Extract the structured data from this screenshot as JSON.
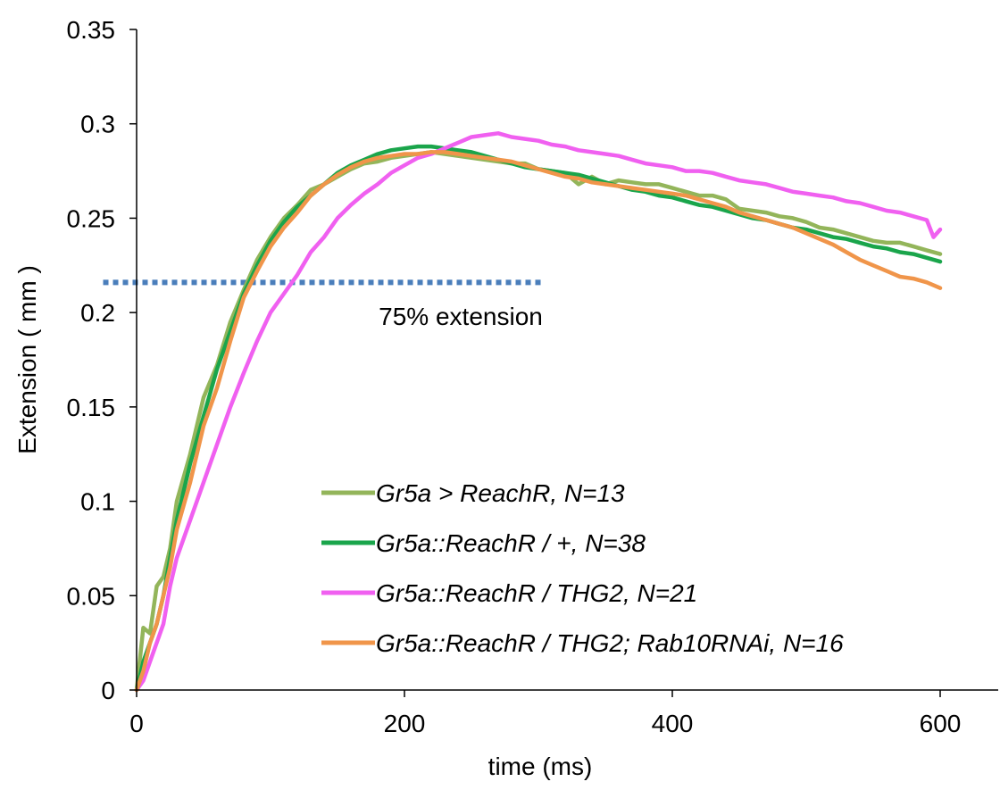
{
  "chart_data": {
    "type": "line",
    "xlabel": "time (ms)",
    "ylabel": "Extension ( mm )",
    "xlim": [
      0,
      600
    ],
    "ylim": [
      0,
      0.35
    ],
    "xticks": [
      "0",
      "200",
      "400",
      "600"
    ],
    "yticks": [
      "0",
      "0.05",
      "0.1",
      "0.15",
      "0.2",
      "0.25",
      "0.3",
      "0.35"
    ],
    "grid": false,
    "legend_position": "lower-right",
    "annotation": {
      "label": "75% extension",
      "y": 0.216,
      "x_range": [
        -25,
        303
      ],
      "color": "#4a7ebb",
      "style": "dotted"
    },
    "series": [
      {
        "name": "Gr5a > ReachR, N=13",
        "color": "#93b55a",
        "x": [
          0,
          5,
          10,
          15,
          20,
          25,
          30,
          40,
          50,
          60,
          70,
          80,
          90,
          100,
          110,
          120,
          130,
          140,
          150,
          160,
          170,
          180,
          190,
          200,
          210,
          220,
          230,
          240,
          250,
          260,
          270,
          280,
          290,
          300,
          310,
          320,
          330,
          340,
          350,
          360,
          370,
          380,
          390,
          400,
          410,
          420,
          430,
          440,
          450,
          460,
          470,
          480,
          490,
          500,
          510,
          520,
          530,
          540,
          550,
          560,
          570,
          580,
          590,
          600
        ],
        "y": [
          0.0,
          0.033,
          0.03,
          0.055,
          0.06,
          0.075,
          0.1,
          0.125,
          0.155,
          0.172,
          0.195,
          0.212,
          0.228,
          0.24,
          0.25,
          0.257,
          0.265,
          0.268,
          0.272,
          0.276,
          0.279,
          0.28,
          0.282,
          0.283,
          0.284,
          0.285,
          0.284,
          0.283,
          0.282,
          0.281,
          0.28,
          0.279,
          0.279,
          0.276,
          0.275,
          0.274,
          0.268,
          0.272,
          0.268,
          0.27,
          0.269,
          0.268,
          0.268,
          0.266,
          0.264,
          0.262,
          0.262,
          0.26,
          0.255,
          0.254,
          0.253,
          0.251,
          0.25,
          0.248,
          0.245,
          0.244,
          0.242,
          0.24,
          0.238,
          0.237,
          0.237,
          0.235,
          0.233,
          0.231
        ]
      },
      {
        "name": "Gr5a::ReachR / +, N=38",
        "color": "#1aa54b",
        "x": [
          0,
          5,
          10,
          15,
          20,
          25,
          30,
          40,
          50,
          60,
          70,
          80,
          90,
          100,
          110,
          120,
          130,
          140,
          150,
          160,
          170,
          180,
          190,
          200,
          210,
          220,
          230,
          240,
          250,
          260,
          270,
          280,
          290,
          300,
          310,
          320,
          330,
          340,
          350,
          360,
          370,
          380,
          390,
          400,
          410,
          420,
          430,
          440,
          450,
          460,
          470,
          480,
          490,
          500,
          510,
          520,
          530,
          540,
          550,
          560,
          570,
          580,
          590,
          600
        ],
        "y": [
          0.0,
          0.015,
          0.025,
          0.035,
          0.05,
          0.07,
          0.09,
          0.12,
          0.145,
          0.17,
          0.19,
          0.21,
          0.225,
          0.238,
          0.248,
          0.256,
          0.262,
          0.268,
          0.274,
          0.278,
          0.281,
          0.284,
          0.286,
          0.287,
          0.288,
          0.288,
          0.287,
          0.286,
          0.285,
          0.283,
          0.281,
          0.279,
          0.277,
          0.276,
          0.275,
          0.274,
          0.273,
          0.271,
          0.269,
          0.267,
          0.265,
          0.264,
          0.262,
          0.261,
          0.259,
          0.257,
          0.256,
          0.254,
          0.252,
          0.25,
          0.249,
          0.247,
          0.245,
          0.244,
          0.242,
          0.24,
          0.239,
          0.237,
          0.235,
          0.234,
          0.232,
          0.231,
          0.229,
          0.227
        ]
      },
      {
        "name": "Gr5a::ReachR / THG2, N=21",
        "color": "#f060f0",
        "x": [
          0,
          5,
          10,
          15,
          20,
          25,
          30,
          40,
          50,
          60,
          70,
          80,
          90,
          100,
          110,
          120,
          130,
          140,
          150,
          160,
          170,
          180,
          190,
          200,
          210,
          220,
          230,
          240,
          250,
          260,
          270,
          280,
          290,
          300,
          310,
          320,
          330,
          340,
          350,
          360,
          370,
          380,
          390,
          400,
          410,
          420,
          430,
          440,
          450,
          460,
          470,
          480,
          490,
          500,
          510,
          520,
          530,
          540,
          550,
          560,
          570,
          580,
          590,
          595,
          600
        ],
        "y": [
          0.0,
          0.005,
          0.015,
          0.025,
          0.035,
          0.055,
          0.07,
          0.09,
          0.11,
          0.13,
          0.15,
          0.168,
          0.185,
          0.2,
          0.21,
          0.22,
          0.232,
          0.24,
          0.25,
          0.257,
          0.263,
          0.268,
          0.274,
          0.278,
          0.282,
          0.284,
          0.287,
          0.29,
          0.293,
          0.294,
          0.295,
          0.293,
          0.292,
          0.291,
          0.289,
          0.288,
          0.286,
          0.285,
          0.284,
          0.283,
          0.281,
          0.279,
          0.278,
          0.277,
          0.275,
          0.275,
          0.274,
          0.272,
          0.27,
          0.269,
          0.268,
          0.266,
          0.264,
          0.263,
          0.262,
          0.261,
          0.259,
          0.258,
          0.256,
          0.254,
          0.253,
          0.251,
          0.249,
          0.24,
          0.244
        ]
      },
      {
        "name": "Gr5a::ReachR / THG2; Rab10RNAi, N=16",
        "color": "#f0954a",
        "x": [
          0,
          5,
          10,
          15,
          20,
          25,
          30,
          40,
          50,
          60,
          70,
          80,
          90,
          100,
          110,
          120,
          130,
          140,
          150,
          160,
          170,
          180,
          190,
          200,
          210,
          220,
          230,
          240,
          250,
          260,
          270,
          280,
          290,
          300,
          310,
          320,
          330,
          340,
          350,
          360,
          370,
          380,
          390,
          400,
          410,
          420,
          430,
          440,
          450,
          460,
          470,
          480,
          490,
          500,
          510,
          520,
          530,
          540,
          550,
          560,
          570,
          580,
          590,
          600
        ],
        "y": [
          0.0,
          0.01,
          0.025,
          0.035,
          0.05,
          0.065,
          0.085,
          0.11,
          0.14,
          0.16,
          0.185,
          0.208,
          0.222,
          0.235,
          0.245,
          0.253,
          0.262,
          0.268,
          0.273,
          0.277,
          0.28,
          0.282,
          0.283,
          0.284,
          0.284,
          0.285,
          0.285,
          0.284,
          0.283,
          0.282,
          0.281,
          0.28,
          0.278,
          0.276,
          0.274,
          0.272,
          0.271,
          0.269,
          0.268,
          0.267,
          0.266,
          0.265,
          0.264,
          0.263,
          0.262,
          0.26,
          0.258,
          0.256,
          0.253,
          0.251,
          0.249,
          0.247,
          0.245,
          0.242,
          0.239,
          0.236,
          0.232,
          0.228,
          0.225,
          0.222,
          0.219,
          0.218,
          0.216,
          0.213
        ]
      }
    ]
  }
}
